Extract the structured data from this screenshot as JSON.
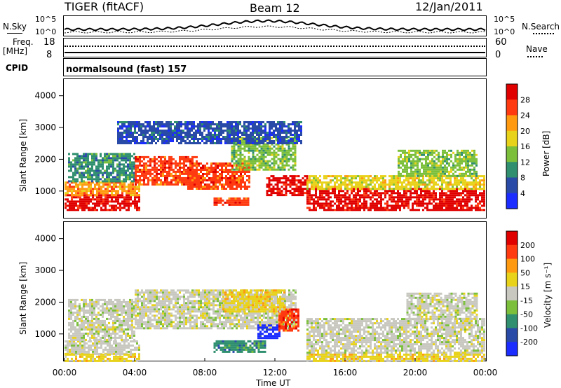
{
  "header": {
    "title": "TIGER (fitACF)",
    "beam": "Beam 12",
    "date": "12/Jan/2011"
  },
  "top_panels": {
    "nsky_label": "N.Sky",
    "nsky_ticks": [
      "10^5",
      "10^0"
    ],
    "nsearch_label": "N.Search",
    "nsearch_ticks": [
      "10^5",
      "10^0"
    ],
    "freq_label_1": "Freq.",
    "freq_label_2": "[MHz]",
    "freq_ticks": [
      "18",
      "8"
    ],
    "nave_label": "Nave",
    "nave_ticks": [
      "60",
      "0"
    ],
    "cpid_label": "CPID",
    "cpid_text": "normalsound (fast) 157"
  },
  "chart_data": [
    {
      "type": "heatmap",
      "name": "power",
      "ylabel": "Slant Range [km]",
      "xlabel": "Time UT",
      "ylim": [
        180,
        4500
      ],
      "xlim": [
        0,
        24
      ],
      "yticks": [
        1000,
        2000,
        3000,
        4000
      ],
      "xticks": [
        "00:00",
        "04:00",
        "08:00",
        "12:00",
        "16:00",
        "20:00",
        "00:00"
      ],
      "colorbar": {
        "label": "Power [dB]",
        "ticks": [
          "4",
          "8",
          "12",
          "16",
          "20",
          "24",
          "28"
        ],
        "colors": [
          "#1a2cff",
          "#2a4aa8",
          "#2f8f6f",
          "#7bbf3a",
          "#e8d21a",
          "#ff9a10",
          "#ff3a10",
          "#e00000"
        ]
      },
      "bands": [
        {
          "t0": 0.0,
          "t1": 4.3,
          "r0": 380,
          "r1": 900,
          "level": 7
        },
        {
          "t0": 0.0,
          "t1": 4.3,
          "r0": 900,
          "r1": 1300,
          "level": 5
        },
        {
          "t0": 0.2,
          "t1": 4.0,
          "r0": 1300,
          "r1": 2200,
          "level": 2
        },
        {
          "t0": 4.0,
          "t1": 7.5,
          "r0": 1200,
          "r1": 2100,
          "level": 6
        },
        {
          "t0": 7.0,
          "t1": 10.5,
          "r0": 1100,
          "r1": 1900,
          "level": 6
        },
        {
          "t0": 9.5,
          "t1": 13.2,
          "r0": 1700,
          "r1": 2700,
          "level": 3
        },
        {
          "t0": 11.5,
          "t1": 13.8,
          "r0": 900,
          "r1": 1500,
          "level": 7
        },
        {
          "t0": 13.8,
          "t1": 24.0,
          "r0": 380,
          "r1": 1100,
          "level": 7
        },
        {
          "t0": 13.8,
          "t1": 24.0,
          "r0": 1100,
          "r1": 1500,
          "level": 4
        },
        {
          "t0": 19.0,
          "t1": 23.5,
          "r0": 1500,
          "r1": 2300,
          "level": 3
        },
        {
          "t0": 8.5,
          "t1": 10.5,
          "r0": 550,
          "r1": 800,
          "level": 6
        },
        {
          "t0": 3.0,
          "t1": 13.5,
          "r0": 2500,
          "r1": 3200,
          "level": 1
        }
      ]
    },
    {
      "type": "heatmap",
      "name": "velocity",
      "ylabel": "Slant Range [km]",
      "xlabel": "Time UT",
      "ylim": [
        180,
        4500
      ],
      "xlim": [
        0,
        24
      ],
      "yticks": [
        1000,
        2000,
        3000,
        4000
      ],
      "xticks": [
        "00:00",
        "04:00",
        "08:00",
        "12:00",
        "16:00",
        "20:00",
        "00:00"
      ],
      "colorbar": {
        "label": "Velocity [m s⁻¹]",
        "ticks": [
          "200",
          "100",
          "50",
          "15",
          "-15",
          "-50",
          "-100",
          "-200"
        ],
        "colors": [
          "#1a2cff",
          "#2a4aa8",
          "#2f8f6f",
          "#7bbf3a",
          "#c8c8c0",
          "#e8d21a",
          "#ff9a10",
          "#ff3a10",
          "#e00000"
        ]
      },
      "bands": [
        {
          "t0": 0.0,
          "t1": 4.3,
          "r0": 380,
          "r1": 800,
          "level": 4
        },
        {
          "t0": 0.0,
          "t1": 4.3,
          "r0": 180,
          "r1": 380,
          "level": 5
        },
        {
          "t0": 0.2,
          "t1": 4.0,
          "r0": 800,
          "r1": 2100,
          "level": 4
        },
        {
          "t0": 4.0,
          "t1": 13.2,
          "r0": 1200,
          "r1": 2400,
          "level": 4
        },
        {
          "t0": 8.5,
          "t1": 11.5,
          "r0": 450,
          "r1": 800,
          "level": 2
        },
        {
          "t0": 11.0,
          "t1": 12.3,
          "r0": 900,
          "r1": 1300,
          "level": 0
        },
        {
          "t0": 12.2,
          "t1": 13.3,
          "r0": 1100,
          "r1": 1800,
          "level": 7
        },
        {
          "t0": 13.8,
          "t1": 24.0,
          "r0": 380,
          "r1": 1500,
          "level": 4
        },
        {
          "t0": 13.8,
          "t1": 24.0,
          "r0": 180,
          "r1": 380,
          "level": 5
        },
        {
          "t0": 19.5,
          "t1": 23.5,
          "r0": 1500,
          "r1": 2300,
          "level": 4
        },
        {
          "t0": 9.0,
          "t1": 12.5,
          "r0": 1700,
          "r1": 2400,
          "level": 5
        }
      ]
    }
  ],
  "xaxis_title": "Time UT"
}
